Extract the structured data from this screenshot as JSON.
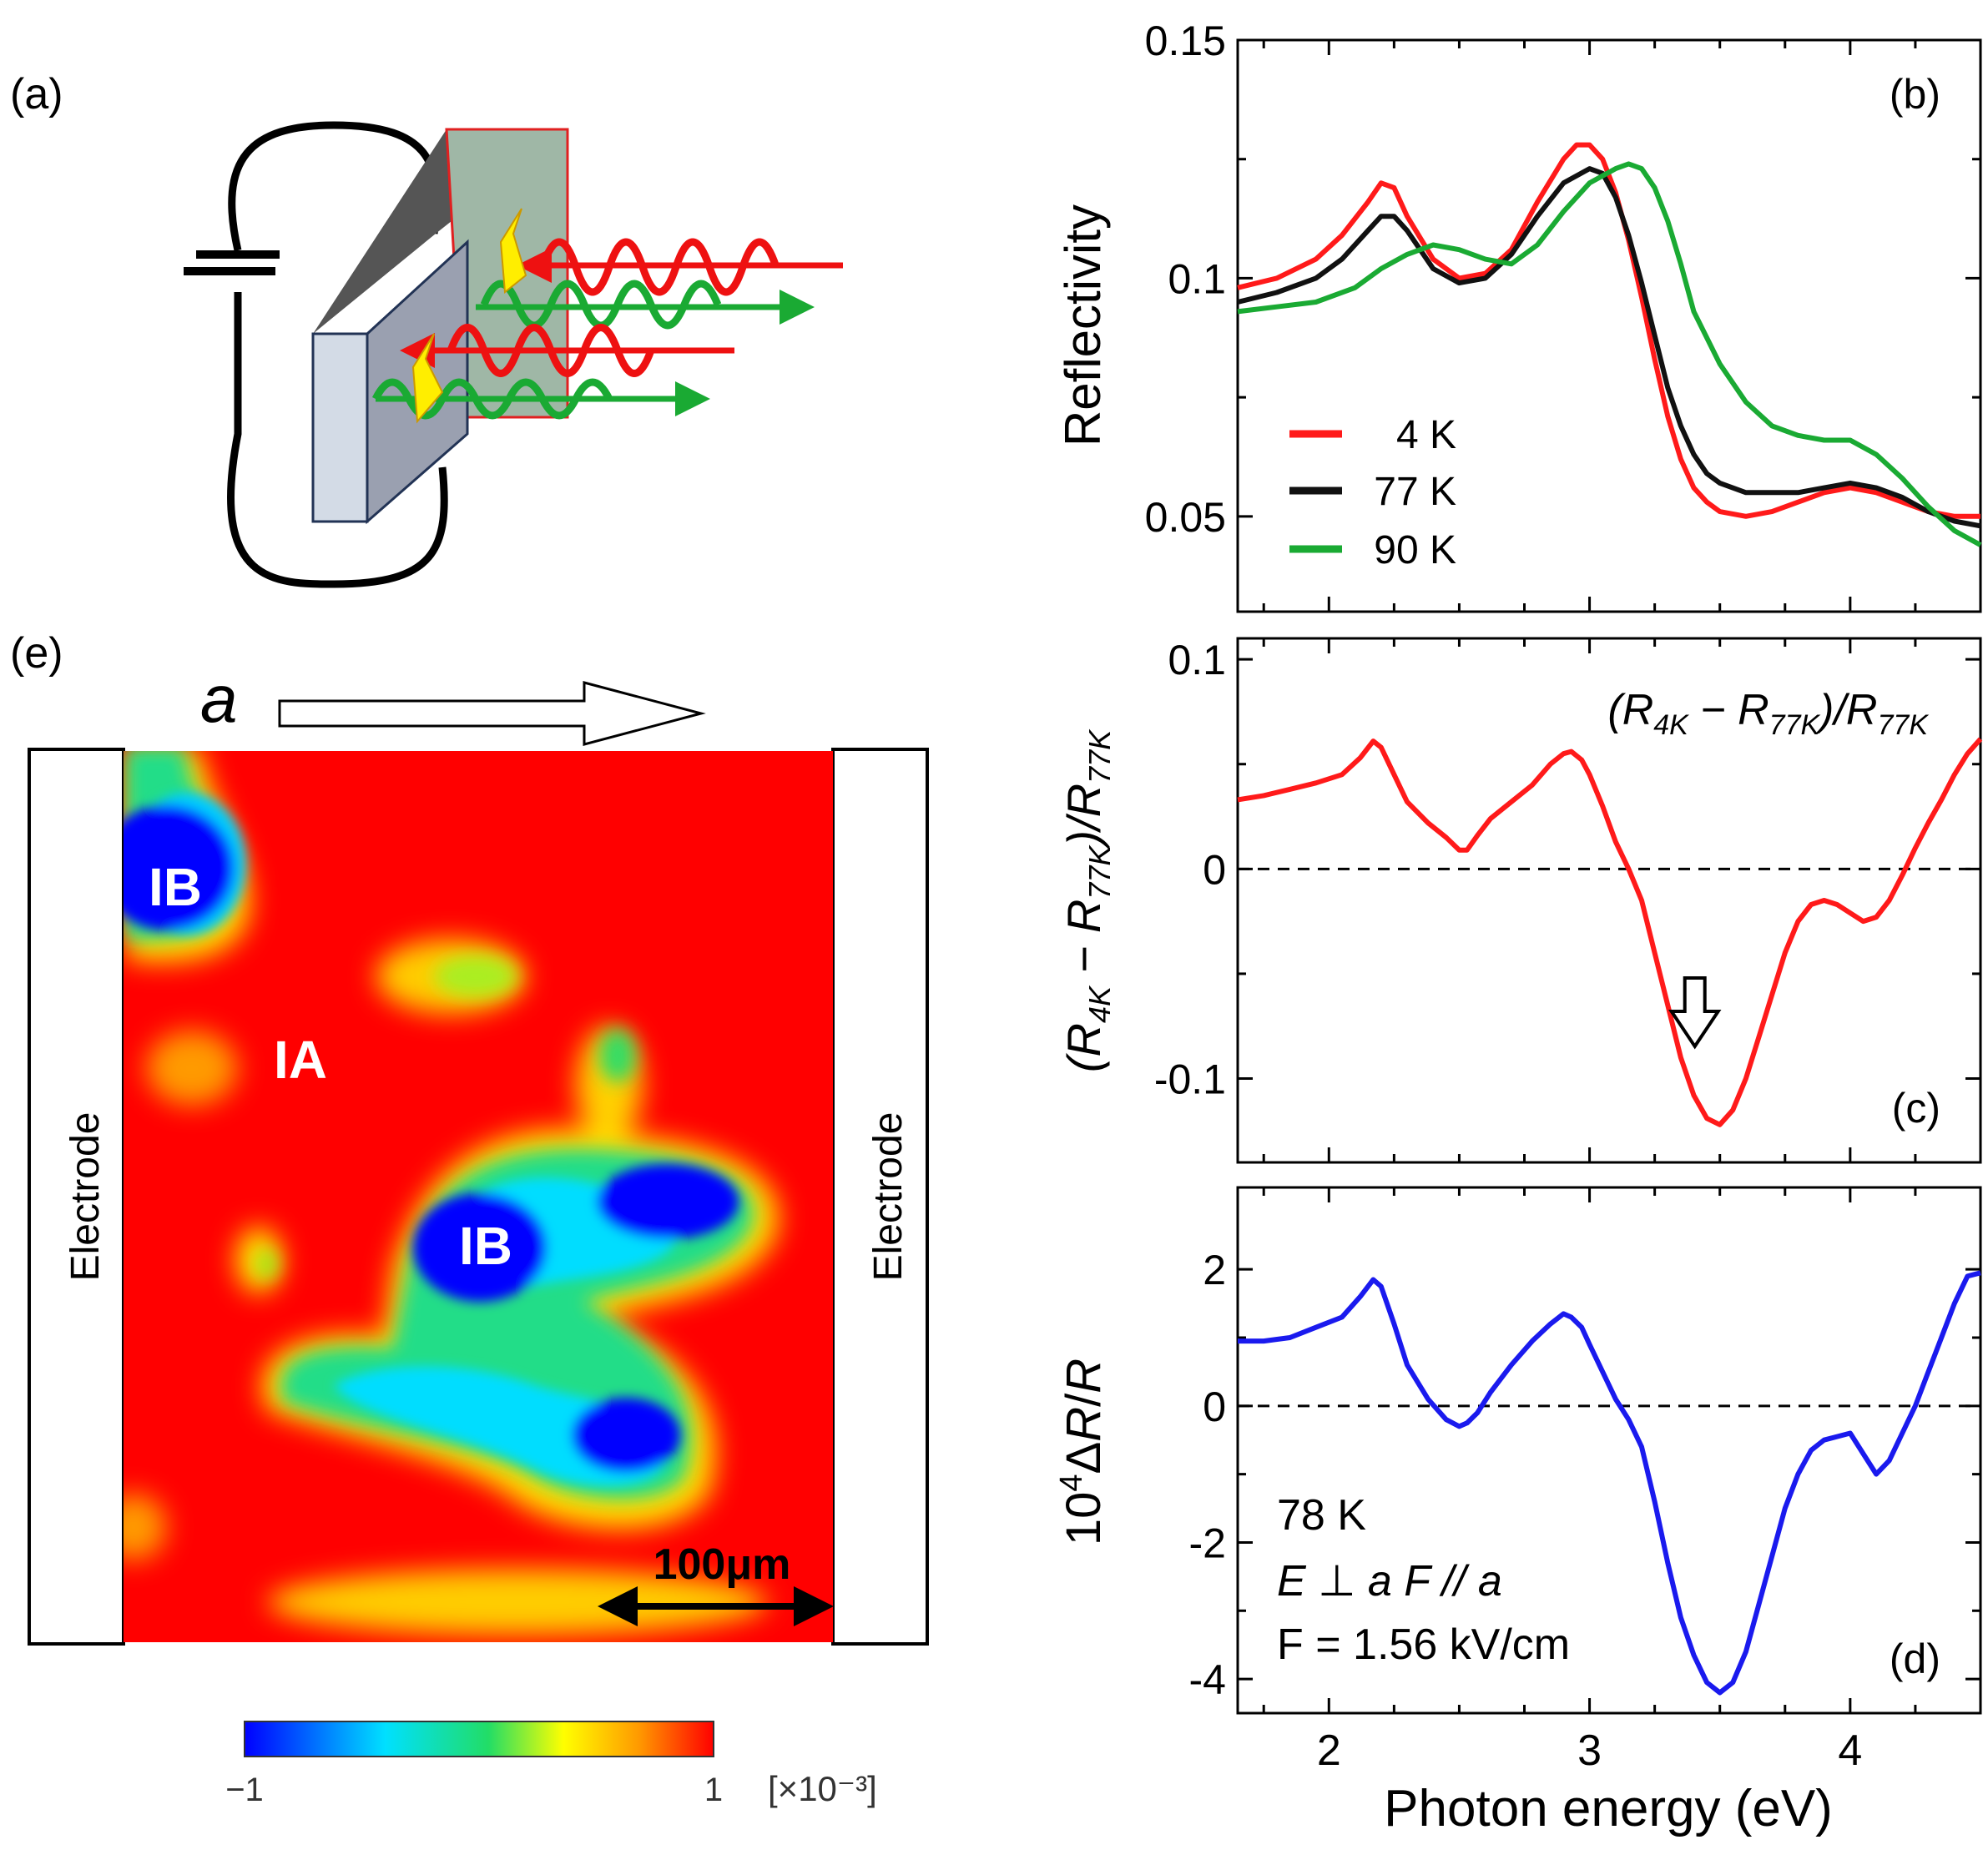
{
  "panel_labels": {
    "a": "(a)",
    "b": "(b)",
    "c": "(c)",
    "d": "(d)",
    "e": "(e)"
  },
  "colors": {
    "red": "#ff1a1a",
    "black": "#111111",
    "green": "#1aaa33",
    "blue": "#1a1aee"
  },
  "chart_data": [
    {
      "id": "b",
      "type": "line",
      "ylabel": "Reflectivity",
      "xlim": [
        1.65,
        4.5
      ],
      "ylim": [
        0.03,
        0.15
      ],
      "xticks": [
        2,
        3,
        4
      ],
      "yticks": [
        {
          "value": 0.05,
          "label": "0.05"
        },
        {
          "value": 0.1,
          "label": "0.1"
        },
        {
          "value": 0.15,
          "label": "0.15"
        }
      ],
      "series": [
        {
          "name": "4 K",
          "legend": "4 K",
          "color": "#ff1a1a",
          "x": [
            1.65,
            1.8,
            1.95,
            2.05,
            2.15,
            2.2,
            2.25,
            2.3,
            2.4,
            2.5,
            2.6,
            2.7,
            2.8,
            2.9,
            2.95,
            3.0,
            3.05,
            3.1,
            3.15,
            3.2,
            3.25,
            3.3,
            3.35,
            3.4,
            3.45,
            3.5,
            3.6,
            3.7,
            3.8,
            3.9,
            4.0,
            4.1,
            4.2,
            4.3,
            4.4,
            4.5
          ],
          "y": [
            0.098,
            0.1,
            0.104,
            0.109,
            0.116,
            0.12,
            0.119,
            0.113,
            0.104,
            0.1,
            0.101,
            0.106,
            0.116,
            0.125,
            0.128,
            0.128,
            0.125,
            0.118,
            0.108,
            0.096,
            0.083,
            0.071,
            0.062,
            0.056,
            0.053,
            0.051,
            0.05,
            0.051,
            0.053,
            0.055,
            0.056,
            0.055,
            0.053,
            0.051,
            0.05,
            0.05
          ]
        },
        {
          "name": "77 K",
          "legend": "77 K",
          "color": "#111111",
          "x": [
            1.65,
            1.8,
            1.95,
            2.05,
            2.15,
            2.2,
            2.25,
            2.3,
            2.4,
            2.5,
            2.6,
            2.7,
            2.8,
            2.9,
            3.0,
            3.05,
            3.1,
            3.15,
            3.2,
            3.25,
            3.3,
            3.35,
            3.4,
            3.45,
            3.5,
            3.6,
            3.7,
            3.8,
            3.9,
            4.0,
            4.1,
            4.2,
            4.3,
            4.4,
            4.5
          ],
          "y": [
            0.095,
            0.097,
            0.1,
            0.104,
            0.11,
            0.113,
            0.113,
            0.11,
            0.102,
            0.099,
            0.1,
            0.105,
            0.113,
            0.12,
            0.123,
            0.122,
            0.117,
            0.109,
            0.099,
            0.088,
            0.077,
            0.069,
            0.063,
            0.059,
            0.057,
            0.055,
            0.055,
            0.055,
            0.056,
            0.057,
            0.056,
            0.054,
            0.051,
            0.049,
            0.048
          ]
        },
        {
          "name": "90 K",
          "legend": "90 K",
          "color": "#1aaa33",
          "x": [
            1.65,
            1.8,
            1.95,
            2.1,
            2.2,
            2.3,
            2.4,
            2.5,
            2.6,
            2.7,
            2.8,
            2.9,
            3.0,
            3.1,
            3.15,
            3.2,
            3.25,
            3.3,
            3.35,
            3.4,
            3.5,
            3.6,
            3.7,
            3.8,
            3.9,
            4.0,
            4.1,
            4.2,
            4.3,
            4.4,
            4.5
          ],
          "y": [
            0.093,
            0.094,
            0.095,
            0.098,
            0.102,
            0.105,
            0.107,
            0.106,
            0.104,
            0.103,
            0.107,
            0.114,
            0.12,
            0.123,
            0.124,
            0.123,
            0.119,
            0.112,
            0.103,
            0.093,
            0.082,
            0.074,
            0.069,
            0.067,
            0.066,
            0.066,
            0.063,
            0.058,
            0.052,
            0.047,
            0.044
          ]
        }
      ]
    },
    {
      "id": "c",
      "type": "line",
      "ylabel": "(R4K − R77K)/R77K",
      "annotation": "(R4K − R77K)/R77K",
      "xlim": [
        1.65,
        4.5
      ],
      "ylim": [
        -0.14,
        0.11
      ],
      "xticks": [
        2,
        3,
        4
      ],
      "yticks": [
        {
          "value": -0.1,
          "label": "-0.1"
        },
        {
          "value": 0,
          "label": "0"
        },
        {
          "value": 0.1,
          "label": "0.1"
        }
      ],
      "zero_line": true,
      "arrow_at": 3.5,
      "series": [
        {
          "name": "ratio",
          "color": "#ff1a1a",
          "x": [
            1.65,
            1.75,
            1.85,
            1.95,
            2.05,
            2.12,
            2.17,
            2.2,
            2.25,
            2.3,
            2.38,
            2.45,
            2.5,
            2.53,
            2.57,
            2.62,
            2.7,
            2.78,
            2.85,
            2.9,
            2.93,
            2.97,
            3.0,
            3.05,
            3.1,
            3.15,
            3.2,
            3.25,
            3.3,
            3.35,
            3.4,
            3.45,
            3.5,
            3.55,
            3.6,
            3.65,
            3.7,
            3.75,
            3.8,
            3.85,
            3.9,
            3.95,
            4.0,
            4.05,
            4.1,
            4.15,
            4.2,
            4.25,
            4.3,
            4.35,
            4.4,
            4.45,
            4.5
          ],
          "y": [
            0.033,
            0.035,
            0.038,
            0.041,
            0.045,
            0.053,
            0.061,
            0.058,
            0.045,
            0.032,
            0.022,
            0.015,
            0.009,
            0.009,
            0.016,
            0.024,
            0.032,
            0.04,
            0.05,
            0.055,
            0.056,
            0.052,
            0.045,
            0.03,
            0.013,
            0.0,
            -0.015,
            -0.04,
            -0.065,
            -0.09,
            -0.108,
            -0.119,
            -0.122,
            -0.115,
            -0.1,
            -0.08,
            -0.06,
            -0.04,
            -0.025,
            -0.017,
            -0.015,
            -0.017,
            -0.021,
            -0.025,
            -0.023,
            -0.015,
            -0.003,
            0.01,
            0.022,
            0.033,
            0.045,
            0.055,
            0.062
          ]
        }
      ]
    },
    {
      "id": "d",
      "type": "line",
      "ylabel": "10^4 ΔR/R",
      "xlabel": "Photon energy (eV)",
      "xlim": [
        1.65,
        4.5
      ],
      "ylim": [
        -4.5,
        3.2
      ],
      "xticks": [
        2,
        3,
        4
      ],
      "yticks": [
        {
          "value": -4,
          "label": "-4"
        },
        {
          "value": -2,
          "label": "-2"
        },
        {
          "value": 0,
          "label": "0"
        },
        {
          "value": 2,
          "label": "2"
        }
      ],
      "zero_line": true,
      "series": [
        {
          "name": "78 K",
          "color": "#1a1aee",
          "x": [
            1.65,
            1.75,
            1.85,
            1.95,
            2.05,
            2.12,
            2.17,
            2.2,
            2.25,
            2.3,
            2.38,
            2.45,
            2.5,
            2.53,
            2.57,
            2.62,
            2.7,
            2.78,
            2.85,
            2.9,
            2.93,
            2.97,
            3.0,
            3.05,
            3.1,
            3.15,
            3.2,
            3.25,
            3.3,
            3.35,
            3.4,
            3.45,
            3.5,
            3.55,
            3.6,
            3.65,
            3.7,
            3.75,
            3.8,
            3.85,
            3.9,
            3.95,
            4.0,
            4.05,
            4.1,
            4.15,
            4.2,
            4.25,
            4.3,
            4.35,
            4.4,
            4.45,
            4.5
          ],
          "y": [
            0.95,
            0.95,
            1.0,
            1.15,
            1.3,
            1.6,
            1.85,
            1.75,
            1.2,
            0.6,
            0.1,
            -0.2,
            -0.3,
            -0.25,
            -0.1,
            0.2,
            0.6,
            0.95,
            1.2,
            1.35,
            1.3,
            1.15,
            0.9,
            0.5,
            0.1,
            -0.2,
            -0.6,
            -1.4,
            -2.3,
            -3.1,
            -3.65,
            -4.05,
            -4.2,
            -4.05,
            -3.6,
            -2.9,
            -2.2,
            -1.5,
            -1.0,
            -0.65,
            -0.5,
            -0.45,
            -0.4,
            -0.7,
            -1.0,
            -0.8,
            -0.4,
            0.0,
            0.5,
            1.0,
            1.5,
            1.9,
            1.95
          ]
        }
      ],
      "annotations": [
        "78 K",
        "E ⊥ a   F // a",
        "F = 1.56 kV/cm"
      ]
    }
  ],
  "panel_e": {
    "axis_label": "a",
    "electrode_left": "Electrode",
    "electrode_right": "Electrode",
    "region_labels": [
      "IB",
      "IA",
      "IB"
    ],
    "scale_bar": "100μm",
    "colorbar_min": "−1",
    "colorbar_max": "1",
    "colorbar_unit": "[×10⁻³]"
  }
}
